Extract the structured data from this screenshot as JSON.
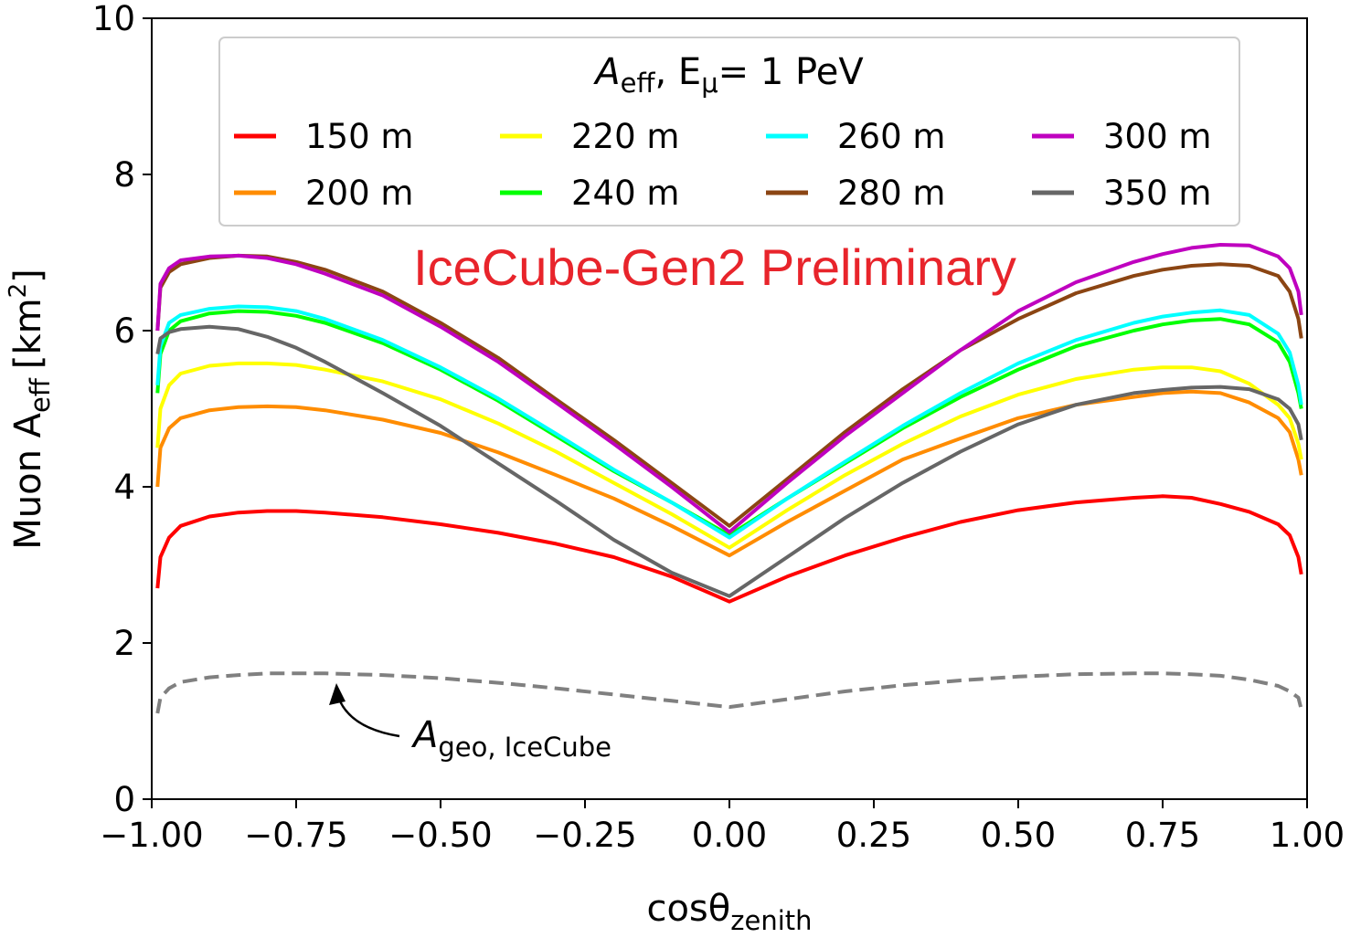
{
  "chart_data": {
    "type": "line",
    "xlabel": "cosθ",
    "xlabel_sub": "zenith",
    "ylabel": "Muon A",
    "ylabel_sub": "eff",
    "ylabel_unit_open": "[km",
    "ylabel_unit_sup": "2",
    "ylabel_unit_close": "]",
    "xlim": [
      -1.0,
      1.0
    ],
    "ylim": [
      0,
      10
    ],
    "xticks": [
      -1.0,
      -0.75,
      -0.5,
      -0.25,
      0.0,
      0.25,
      0.5,
      0.75,
      1.0
    ],
    "xtick_labels": [
      "−1.00",
      "−0.75",
      "−0.50",
      "−0.25",
      "0.00",
      "0.25",
      "0.50",
      "0.75",
      "1.00"
    ],
    "yticks": [
      0,
      2,
      4,
      6,
      8,
      10
    ],
    "ytick_labels": [
      "0",
      "2",
      "4",
      "6",
      "8",
      "10"
    ],
    "grid": false,
    "legend": {
      "placement": "top-center",
      "columns": 4,
      "title_main": "A",
      "title_sub": "eff",
      "title_sep": ", E",
      "title_sub2": "μ",
      "title_rest": "= 1 PeV"
    },
    "watermark": "IceCube-Gen2 Preliminary",
    "annotation": {
      "text_main": "A",
      "text_sub": "geo, IceCube",
      "points_to": {
        "x": -0.68,
        "y": 1.45
      }
    },
    "x": [
      -0.99,
      -0.985,
      -0.97,
      -0.95,
      -0.9,
      -0.85,
      -0.8,
      -0.75,
      -0.7,
      -0.6,
      -0.5,
      -0.4,
      -0.3,
      -0.2,
      -0.1,
      0.0,
      0.1,
      0.2,
      0.3,
      0.4,
      0.5,
      0.6,
      0.7,
      0.75,
      0.8,
      0.85,
      0.9,
      0.95,
      0.97,
      0.985,
      0.99
    ],
    "series": [
      {
        "name": "150 m",
        "color": "#ff0000",
        "dashed": false,
        "values": [
          2.7,
          3.1,
          3.35,
          3.5,
          3.62,
          3.67,
          3.69,
          3.69,
          3.67,
          3.61,
          3.52,
          3.41,
          3.27,
          3.1,
          2.85,
          2.53,
          2.85,
          3.12,
          3.35,
          3.55,
          3.7,
          3.8,
          3.86,
          3.88,
          3.86,
          3.78,
          3.68,
          3.52,
          3.38,
          3.1,
          2.88
        ]
      },
      {
        "name": "200 m",
        "color": "#ff8c00",
        "dashed": false,
        "values": [
          4.0,
          4.5,
          4.75,
          4.88,
          4.98,
          5.02,
          5.03,
          5.02,
          4.98,
          4.86,
          4.69,
          4.44,
          4.15,
          3.85,
          3.5,
          3.12,
          3.55,
          3.95,
          4.35,
          4.62,
          4.88,
          5.05,
          5.15,
          5.2,
          5.22,
          5.2,
          5.08,
          4.88,
          4.7,
          4.35,
          4.15
        ]
      },
      {
        "name": "220 m",
        "color": "#ffff00",
        "dashed": false,
        "values": [
          4.5,
          5.0,
          5.3,
          5.45,
          5.55,
          5.58,
          5.58,
          5.56,
          5.5,
          5.35,
          5.12,
          4.81,
          4.45,
          4.05,
          3.65,
          3.22,
          3.7,
          4.15,
          4.55,
          4.9,
          5.18,
          5.38,
          5.5,
          5.53,
          5.53,
          5.48,
          5.32,
          5.05,
          4.88,
          4.55,
          4.35
        ]
      },
      {
        "name": "240 m",
        "color": "#00ff00",
        "dashed": false,
        "values": [
          5.2,
          5.7,
          6.0,
          6.12,
          6.22,
          6.25,
          6.24,
          6.19,
          6.1,
          5.84,
          5.5,
          5.1,
          4.65,
          4.2,
          3.8,
          3.38,
          3.85,
          4.3,
          4.75,
          5.15,
          5.5,
          5.8,
          6.0,
          6.08,
          6.13,
          6.15,
          6.08,
          5.85,
          5.6,
          5.2,
          5.0
        ]
      },
      {
        "name": "260 m",
        "color": "#00ffff",
        "dashed": false,
        "values": [
          5.3,
          5.8,
          6.1,
          6.2,
          6.28,
          6.31,
          6.3,
          6.25,
          6.15,
          5.88,
          5.53,
          5.13,
          4.68,
          4.22,
          3.8,
          3.35,
          3.85,
          4.32,
          4.78,
          5.2,
          5.58,
          5.88,
          6.1,
          6.18,
          6.23,
          6.26,
          6.2,
          5.96,
          5.72,
          5.3,
          5.05
        ]
      },
      {
        "name": "280 m",
        "color": "#8b4513",
        "dashed": false,
        "values": [
          6.0,
          6.55,
          6.75,
          6.85,
          6.93,
          6.96,
          6.95,
          6.88,
          6.78,
          6.5,
          6.1,
          5.65,
          5.12,
          4.6,
          4.05,
          3.5,
          4.1,
          4.7,
          5.25,
          5.75,
          6.15,
          6.48,
          6.7,
          6.78,
          6.83,
          6.85,
          6.83,
          6.7,
          6.5,
          6.15,
          5.9
        ]
      },
      {
        "name": "300 m",
        "color": "#bf00bf",
        "dashed": false,
        "values": [
          6.0,
          6.6,
          6.8,
          6.9,
          6.95,
          6.96,
          6.93,
          6.85,
          6.73,
          6.45,
          6.05,
          5.6,
          5.08,
          4.55,
          4.0,
          3.42,
          4.05,
          4.65,
          5.2,
          5.75,
          6.25,
          6.62,
          6.88,
          6.98,
          7.06,
          7.1,
          7.09,
          6.95,
          6.8,
          6.5,
          6.2
        ]
      },
      {
        "name": "350 m",
        "color": "#666666",
        "dashed": false,
        "values": [
          5.7,
          5.9,
          5.98,
          6.02,
          6.05,
          6.02,
          5.92,
          5.78,
          5.6,
          5.2,
          4.78,
          4.3,
          3.82,
          3.32,
          2.9,
          2.6,
          3.1,
          3.6,
          4.05,
          4.45,
          4.8,
          5.05,
          5.2,
          5.24,
          5.27,
          5.28,
          5.25,
          5.12,
          5.0,
          4.8,
          4.6
        ]
      },
      {
        "color": "#808080",
        "dashed": true,
        "values": [
          1.1,
          1.3,
          1.42,
          1.5,
          1.56,
          1.59,
          1.61,
          1.61,
          1.61,
          1.59,
          1.55,
          1.49,
          1.42,
          1.34,
          1.26,
          1.18,
          1.28,
          1.38,
          1.46,
          1.52,
          1.57,
          1.6,
          1.61,
          1.61,
          1.6,
          1.58,
          1.53,
          1.45,
          1.38,
          1.3,
          1.15
        ]
      }
    ]
  }
}
